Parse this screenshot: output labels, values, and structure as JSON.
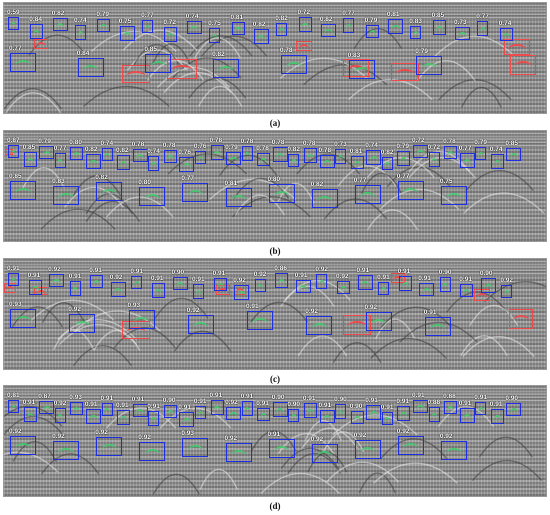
{
  "panels": [
    {
      "caption": "(a)",
      "detections": [
        {
          "score": "0.59"
        },
        {
          "score": "0.84"
        },
        {
          "score": "0.82"
        },
        {
          "score": "0.74"
        },
        {
          "score": "0.79"
        },
        {
          "score": "0.75"
        },
        {
          "score": "0.77"
        },
        {
          "score": "0.72"
        },
        {
          "score": "0.74"
        },
        {
          "score": "0.75"
        },
        {
          "score": "0.81"
        },
        {
          "score": "0.82"
        },
        {
          "score": "0.82"
        },
        {
          "score": "0.72"
        },
        {
          "score": "0.82"
        },
        {
          "score": "0.77"
        },
        {
          "score": "0.79"
        },
        {
          "score": "0.81"
        },
        {
          "score": "0.83"
        },
        {
          "score": "0.85"
        },
        {
          "score": "0.73"
        },
        {
          "score": "0.77"
        },
        {
          "score": "0.74"
        },
        {
          "score": "0.77"
        },
        {
          "score": "0.84"
        },
        {
          "score": "0.85"
        },
        {
          "score": "0.82"
        },
        {
          "score": "0.78"
        },
        {
          "score": "0.83"
        },
        {
          "score": "0.79"
        }
      ]
    },
    {
      "caption": "(b)",
      "detections": [
        {
          "score": "0.87"
        },
        {
          "score": "0.85"
        },
        {
          "score": "0.79"
        },
        {
          "score": "0.77"
        },
        {
          "score": "0.80"
        },
        {
          "score": "0.82"
        },
        {
          "score": "0.74"
        },
        {
          "score": "0.82"
        },
        {
          "score": "0.78"
        },
        {
          "score": "0.74"
        },
        {
          "score": "0.78"
        },
        {
          "score": "0.76"
        },
        {
          "score": "0.76"
        },
        {
          "score": "0.78"
        },
        {
          "score": "0.79"
        },
        {
          "score": "0.78"
        },
        {
          "score": "0.78"
        },
        {
          "score": "0.78"
        },
        {
          "score": "0.82"
        },
        {
          "score": "0.78"
        },
        {
          "score": "0.78"
        },
        {
          "score": "0.73"
        },
        {
          "score": "0.81"
        },
        {
          "score": "0.74"
        },
        {
          "score": "0.82"
        },
        {
          "score": "0.79"
        },
        {
          "score": "0.72"
        },
        {
          "score": "0.72"
        },
        {
          "score": "0.78"
        },
        {
          "score": "0.77"
        },
        {
          "score": "0.79"
        },
        {
          "score": "0.74"
        },
        {
          "score": "0.85"
        },
        {
          "score": "0.85"
        },
        {
          "score": "0.83"
        },
        {
          "score": "0.82"
        },
        {
          "score": "0.80"
        },
        {
          "score": "0.77"
        },
        {
          "score": "0.81"
        },
        {
          "score": "0.80"
        },
        {
          "score": "0.82"
        },
        {
          "score": "0.77"
        },
        {
          "score": "0.77"
        },
        {
          "score": "0.75"
        }
      ]
    },
    {
      "caption": "(c)",
      "detections": [
        {
          "score": "0.91"
        },
        {
          "score": "0.91"
        },
        {
          "score": "0.92"
        },
        {
          "score": "0.91"
        },
        {
          "score": "0.91"
        },
        {
          "score": "0.92"
        },
        {
          "score": "0.91"
        },
        {
          "score": "0.91"
        },
        {
          "score": "0.90"
        },
        {
          "score": "0.91"
        },
        {
          "score": "0.91"
        },
        {
          "score": "0.92"
        },
        {
          "score": "0.92"
        },
        {
          "score": "0.86"
        },
        {
          "score": "0.91"
        },
        {
          "score": "0.92"
        },
        {
          "score": "0.92"
        },
        {
          "score": "0.91"
        },
        {
          "score": "0.91"
        },
        {
          "score": "0.91"
        },
        {
          "score": "0.91"
        },
        {
          "score": "0.90"
        },
        {
          "score": "0.91"
        },
        {
          "score": "0.90"
        },
        {
          "score": "0.92"
        },
        {
          "score": "0.93"
        },
        {
          "score": "0.92"
        },
        {
          "score": "0.93"
        },
        {
          "score": "0.92"
        },
        {
          "score": "0.91"
        },
        {
          "score": "0.92"
        },
        {
          "score": "0.92"
        },
        {
          "score": "0.91"
        }
      ]
    },
    {
      "caption": "(d)",
      "detections": [
        {
          "score": "0.81"
        },
        {
          "score": "0.91"
        },
        {
          "score": "0.87"
        },
        {
          "score": "0.92"
        },
        {
          "score": "0.93"
        },
        {
          "score": "0.91"
        },
        {
          "score": "0.91"
        },
        {
          "score": "0.91"
        },
        {
          "score": "0.91"
        },
        {
          "score": "0.91"
        },
        {
          "score": "0.90"
        },
        {
          "score": "0.91"
        },
        {
          "score": "0.91"
        },
        {
          "score": "0.91"
        },
        {
          "score": "0.92"
        },
        {
          "score": "0.91"
        },
        {
          "score": "0.91"
        },
        {
          "score": "0.90"
        },
        {
          "score": "0.90"
        },
        {
          "score": "0.91"
        },
        {
          "score": "0.91"
        },
        {
          "score": "0.90"
        },
        {
          "score": "0.90"
        },
        {
          "score": "0.91"
        },
        {
          "score": "0.91"
        },
        {
          "score": "0.91"
        },
        {
          "score": "0.91"
        },
        {
          "score": "0.88"
        },
        {
          "score": "0.88"
        },
        {
          "score": "0.91"
        },
        {
          "score": "0.91"
        },
        {
          "score": "0.91"
        },
        {
          "score": "0.90"
        },
        {
          "score": "0.92"
        },
        {
          "score": "0.92"
        },
        {
          "score": "0.92"
        },
        {
          "score": "0.92"
        },
        {
          "score": "0.93"
        },
        {
          "score": "0.92"
        },
        {
          "score": "0.91"
        },
        {
          "score": "0.92"
        },
        {
          "score": "0.92"
        },
        {
          "score": "0.92"
        },
        {
          "score": "0.92"
        }
      ]
    }
  ],
  "colors": {
    "detection_box": "#1d2fe0",
    "missed_target": "#f04a4a",
    "hyperbola": "#3ccf6a",
    "score_text": "#ffffff"
  }
}
